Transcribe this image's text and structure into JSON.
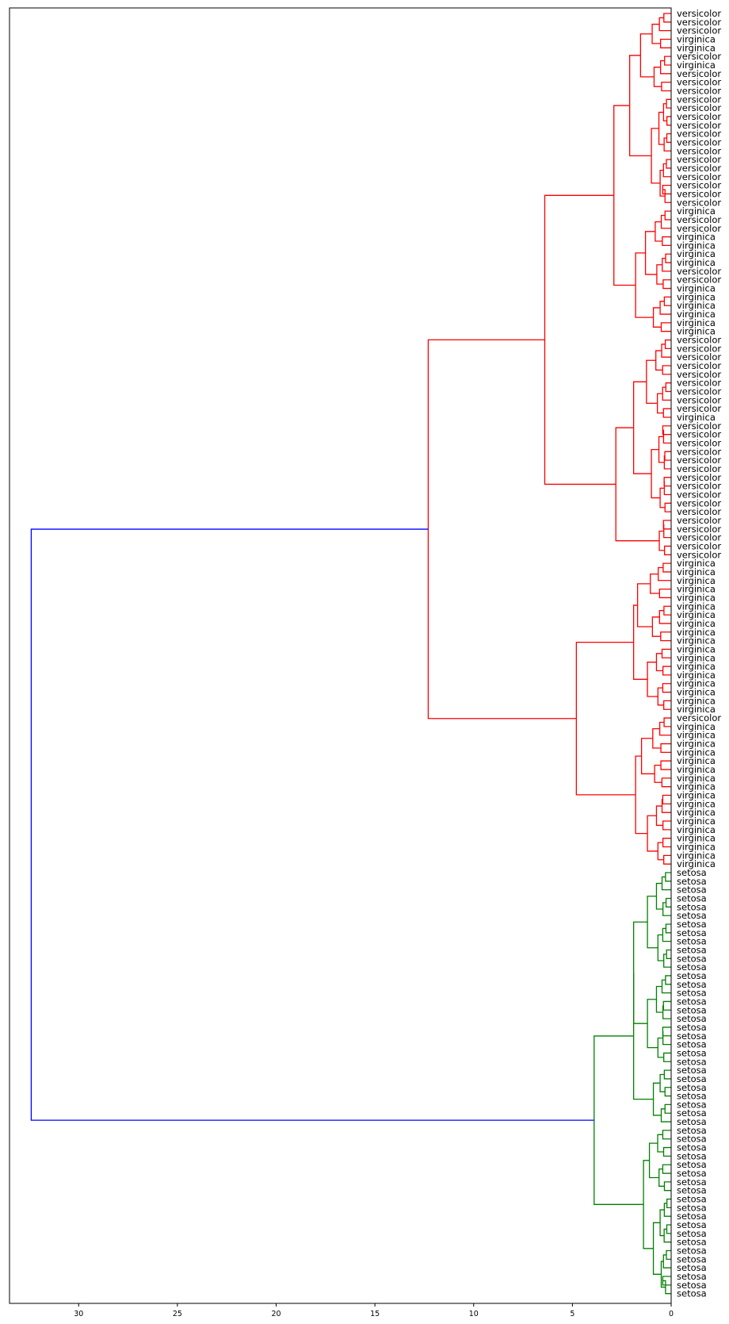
{
  "chart_data": {
    "type": "dendrogram",
    "orientation": "left",
    "xlabel": "",
    "ylabel": "",
    "xlim": [
      33.5,
      0
    ],
    "xticks": [
      30,
      25,
      20,
      15,
      10,
      5,
      0
    ],
    "colors": {
      "cluster_versicolor_virginica": "#ff0000",
      "cluster_setosa": "#008000",
      "root_link": "#0000ff",
      "axes": "#000000"
    },
    "leaves": [
      "versicolor",
      "versicolor",
      "versicolor",
      "virginica",
      "virginica",
      "versicolor",
      "virginica",
      "versicolor",
      "versicolor",
      "versicolor",
      "versicolor",
      "versicolor",
      "versicolor",
      "versicolor",
      "versicolor",
      "versicolor",
      "versicolor",
      "versicolor",
      "versicolor",
      "versicolor",
      "versicolor",
      "versicolor",
      "versicolor",
      "virginica",
      "versicolor",
      "versicolor",
      "virginica",
      "virginica",
      "virginica",
      "virginica",
      "versicolor",
      "versicolor",
      "virginica",
      "virginica",
      "virginica",
      "virginica",
      "virginica",
      "virginica",
      "versicolor",
      "versicolor",
      "versicolor",
      "versicolor",
      "versicolor",
      "versicolor",
      "versicolor",
      "versicolor",
      "versicolor",
      "virginica",
      "versicolor",
      "versicolor",
      "versicolor",
      "versicolor",
      "versicolor",
      "versicolor",
      "versicolor",
      "versicolor",
      "versicolor",
      "versicolor",
      "versicolor",
      "versicolor",
      "versicolor",
      "versicolor",
      "versicolor",
      "versicolor",
      "virginica",
      "virginica",
      "virginica",
      "virginica",
      "virginica",
      "virginica",
      "virginica",
      "virginica",
      "virginica",
      "virginica",
      "virginica",
      "virginica",
      "virginica",
      "virginica",
      "virginica",
      "virginica",
      "virginica",
      "virginica",
      "versicolor",
      "virginica",
      "virginica",
      "virginica",
      "virginica",
      "virginica",
      "virginica",
      "virginica",
      "virginica",
      "virginica",
      "virginica",
      "virginica",
      "virginica",
      "virginica",
      "virginica",
      "virginica",
      "virginica",
      "virginica",
      "setosa",
      "setosa",
      "setosa",
      "setosa",
      "setosa",
      "setosa",
      "setosa",
      "setosa",
      "setosa",
      "setosa",
      "setosa",
      "setosa",
      "setosa",
      "setosa",
      "setosa",
      "setosa",
      "setosa",
      "setosa",
      "setosa",
      "setosa",
      "setosa",
      "setosa",
      "setosa",
      "setosa",
      "setosa",
      "setosa",
      "setosa",
      "setosa",
      "setosa",
      "setosa",
      "setosa",
      "setosa",
      "setosa",
      "setosa",
      "setosa",
      "setosa",
      "setosa",
      "setosa",
      "setosa",
      "setosa",
      "setosa",
      "setosa",
      "setosa",
      "setosa",
      "setosa",
      "setosa",
      "setosa",
      "setosa",
      "setosa",
      "setosa"
    ],
    "major_merges": [
      {
        "members": "versicolor/virginica group A",
        "height": 2.9
      },
      {
        "members": "versicolor group B",
        "height": 2.8
      },
      {
        "members": "A + B",
        "height": 6.4
      },
      {
        "members": "virginica group C",
        "height": 4.8
      },
      {
        "members": "A + B + C",
        "height": 12.3
      },
      {
        "members": "setosa group",
        "height": 3.9
      },
      {
        "members": "all",
        "height": 32.4
      }
    ]
  }
}
